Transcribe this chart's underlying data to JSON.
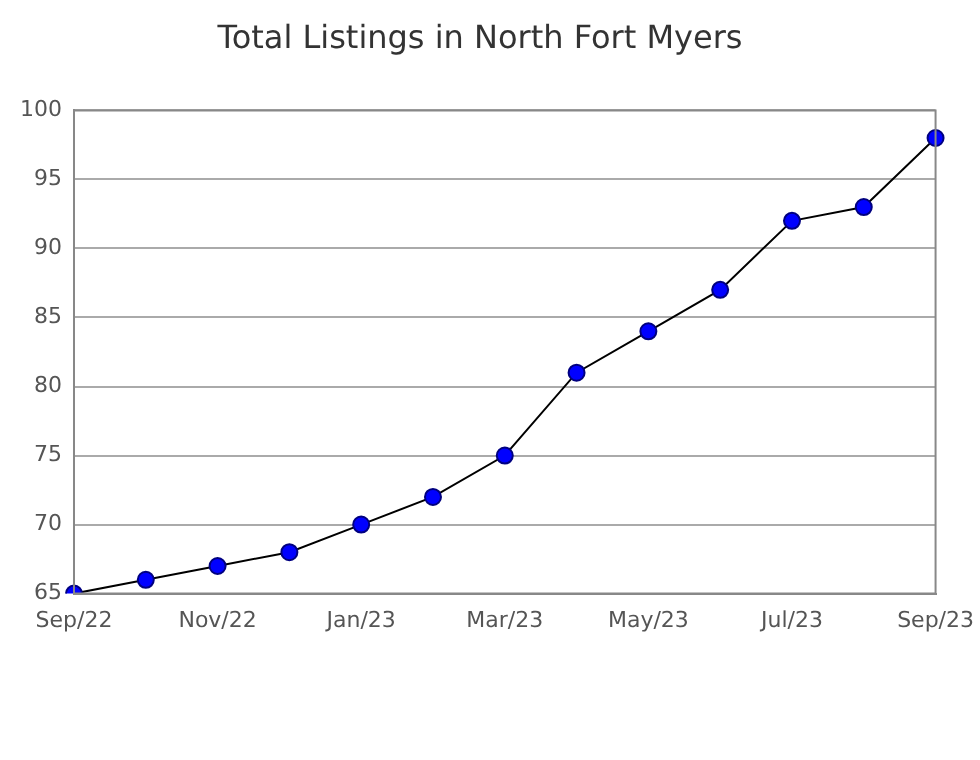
{
  "chart_data": {
    "type": "line",
    "title": "Total Listings in North Fort Myers",
    "categories": [
      "Sep/22",
      null,
      "Nov/22",
      null,
      "Jan/23",
      null,
      "Mar/23",
      null,
      "May/23",
      null,
      "Jul/23",
      null,
      "Sep/23"
    ],
    "series": [
      {
        "color": "#0000ff",
        "values": [
          65,
          66,
          67,
          68,
          70,
          72,
          75,
          81,
          84,
          87,
          92,
          93,
          98
        ]
      }
    ],
    "ylim": [
      65,
      100
    ],
    "yticks": [
      65,
      70,
      75,
      80,
      85,
      90,
      95,
      100
    ],
    "grid": "y",
    "legend": false,
    "marker": "circle",
    "line_style": "solid"
  }
}
